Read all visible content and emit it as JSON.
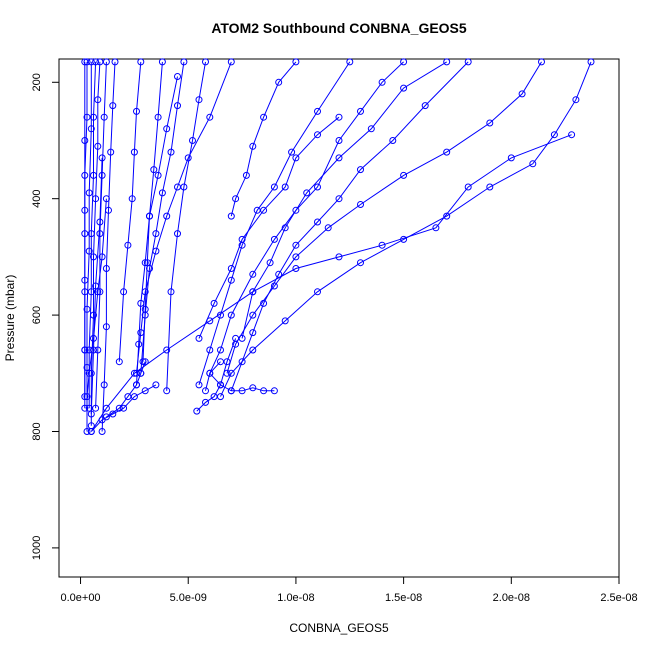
{
  "chart_data": {
    "type": "line",
    "title": "ATOM2 Southbound CONBNA_GEOS5",
    "xlabel": "CONBNA_GEOS5",
    "ylabel": "Pressure (mbar)",
    "xlim": [
      -1e-09,
      2.5e-08
    ],
    "ylim": [
      1050,
      160
    ],
    "x_ticks": [
      0,
      5e-09,
      1e-08,
      1.5e-08,
      2e-08,
      2.5e-08
    ],
    "x_tick_labels": [
      "0.0e+00",
      "5.0e-09",
      "1.0e-08",
      "1.5e-08",
      "2.0e-08",
      "2.5e-08"
    ],
    "y_ticks": [
      200,
      400,
      600,
      800,
      1000
    ],
    "y_tick_labels": [
      "200",
      "400",
      "600",
      "800",
      "1000"
    ],
    "grid": false,
    "series_color": "#0000ff",
    "series": [
      {
        "x": [
          1.5e-08,
          1.4e-08,
          1.3e-08,
          1.2e-08,
          1.1e-08,
          1e-08,
          9e-09,
          8e-09,
          7e-09,
          6.5e-09,
          6e-09,
          5.8e-09
        ],
        "y": [
          165,
          200,
          250,
          300,
          380,
          420,
          470,
          530,
          600,
          660,
          700,
          730
        ]
      },
      {
        "x": [
          2.37e-08,
          2.3e-08,
          2.2e-08,
          2.1e-08,
          1.9e-08,
          1.7e-08,
          1.5e-08,
          1.3e-08,
          1.1e-08,
          9.5e-09,
          8e-09,
          7e-09,
          6.5e-09
        ],
        "y": [
          165,
          230,
          290,
          340,
          380,
          430,
          470,
          510,
          560,
          610,
          660,
          700,
          740
        ]
      },
      {
        "x": [
          2.14e-08,
          2.05e-08,
          1.9e-08,
          1.7e-08,
          1.5e-08,
          1.3e-08,
          1.15e-08,
          1e-08,
          9e-09,
          8e-09,
          7.2e-09,
          6.8e-09
        ],
        "y": [
          165,
          220,
          270,
          320,
          360,
          410,
          450,
          500,
          550,
          600,
          650,
          700
        ]
      },
      {
        "x": [
          1.8e-08,
          1.6e-08,
          1.45e-08,
          1.3e-08,
          1.2e-08,
          1.1e-08,
          1e-08,
          9.2e-09,
          8.5e-09,
          8e-09,
          7.5e-09,
          7e-09
        ],
        "y": [
          165,
          240,
          300,
          350,
          400,
          440,
          480,
          530,
          580,
          630,
          680,
          730
        ]
      },
      {
        "x": [
          2.28e-08,
          2e-08,
          1.8e-08,
          1.65e-08,
          1.4e-08,
          1.2e-08,
          1e-08,
          8e-09,
          6e-09,
          4e-09,
          2.5e-09,
          1.2e-09,
          5e-10
        ],
        "y": [
          290,
          330,
          380,
          450,
          480,
          500,
          520,
          560,
          610,
          660,
          700,
          760,
          800
        ]
      },
      {
        "x": [
          1.25e-08,
          1.1e-08,
          9.8e-09,
          9e-09,
          8.2e-09,
          7.5e-09,
          7e-09,
          6.5e-09,
          6e-09,
          5.5e-09
        ],
        "y": [
          165,
          250,
          320,
          380,
          420,
          480,
          540,
          600,
          660,
          720
        ]
      },
      {
        "x": [
          1.7e-08,
          1.5e-08,
          1.35e-08,
          1.2e-08,
          1.05e-08,
          9.5e-09,
          8.8e-09,
          8e-09,
          7.5e-09
        ],
        "y": [
          165,
          210,
          280,
          330,
          390,
          450,
          510,
          560,
          640
        ]
      },
      {
        "x": [
          1.2e-08,
          1.1e-08,
          1e-08,
          9.5e-09,
          8.5e-09,
          7.5e-09,
          7e-09,
          6.2e-09,
          5.5e-09
        ],
        "y": [
          260,
          290,
          330,
          380,
          420,
          470,
          520,
          580,
          640
        ]
      },
      {
        "x": [
          1e-08,
          9.2e-09,
          8.5e-09,
          8e-09,
          7.7e-09,
          7.2e-09,
          7e-09
        ],
        "y": [
          165,
          200,
          260,
          310,
          360,
          400,
          430
        ]
      },
      {
        "x": [
          7e-09,
          6e-09,
          5e-09,
          4.5e-09,
          4e-09,
          3.5e-09,
          3e-09,
          2.8e-09,
          2.6e-09
        ],
        "y": [
          165,
          260,
          330,
          380,
          430,
          490,
          560,
          630,
          700
        ]
      },
      {
        "x": [
          4.8e-09,
          4.5e-09,
          4.2e-09,
          3.8e-09,
          3.5e-09,
          3.2e-09,
          3e-09,
          2.8e-09
        ],
        "y": [
          165,
          240,
          320,
          390,
          460,
          520,
          600,
          700
        ]
      },
      {
        "x": [
          4.5e-09,
          4e-09,
          3.6e-09,
          3.2e-09,
          3e-09,
          2.8e-09,
          2.7e-09,
          2.6e-09
        ],
        "y": [
          190,
          280,
          360,
          430,
          510,
          580,
          650,
          720
        ]
      },
      {
        "x": [
          3.8e-09,
          3.6e-09,
          3.4e-09,
          3.2e-09,
          3.1e-09,
          3e-09,
          2.9e-09
        ],
        "y": [
          165,
          260,
          350,
          430,
          510,
          590,
          680
        ]
      },
      {
        "x": [
          5.8e-09,
          5.5e-09,
          5.2e-09,
          4.8e-09,
          4.5e-09,
          4.2e-09,
          4e-09
        ],
        "y": [
          165,
          230,
          300,
          380,
          460,
          560,
          730
        ]
      },
      {
        "x": [
          2.8e-09,
          2.6e-09,
          2.5e-09,
          2.4e-09,
          2.2e-09,
          2e-09,
          1.8e-09
        ],
        "y": [
          165,
          250,
          320,
          400,
          480,
          560,
          680
        ]
      },
      {
        "x": [
          1.6e-09,
          1.5e-09,
          1.4e-09,
          1.3e-09,
          1.2e-09,
          1.2e-09,
          1.1e-09,
          1e-09
        ],
        "y": [
          165,
          240,
          320,
          420,
          520,
          620,
          720,
          800
        ]
      },
      {
        "x": [
          1.2e-09,
          1.1e-09,
          1e-09,
          9e-10,
          9e-10,
          8e-10,
          7e-10
        ],
        "y": [
          165,
          260,
          360,
          460,
          560,
          660,
          760
        ]
      },
      {
        "x": [
          9e-10,
          8e-10,
          8e-10,
          7e-10,
          6e-10,
          6e-10,
          5e-10,
          5e-10
        ],
        "y": [
          165,
          230,
          310,
          400,
          500,
          600,
          700,
          790
        ]
      },
      {
        "x": [
          7e-10,
          6e-10,
          6e-10,
          5e-10,
          5e-10,
          4e-10,
          4e-10
        ],
        "y": [
          165,
          260,
          360,
          460,
          560,
          660,
          760
        ]
      },
      {
        "x": [
          5e-10,
          5e-10,
          4e-10,
          4e-10,
          3e-10,
          3e-10,
          3e-10
        ],
        "y": [
          165,
          280,
          390,
          490,
          590,
          690,
          800
        ]
      },
      {
        "x": [
          3e-10,
          3e-10,
          2e-10,
          2e-10,
          2e-10,
          2e-10,
          2e-10
        ],
        "y": [
          165,
          260,
          360,
          460,
          560,
          660,
          740
        ]
      },
      {
        "x": [
          2e-10,
          2e-10,
          2e-10,
          2e-10,
          2e-10,
          2e-10
        ],
        "y": [
          165,
          300,
          420,
          540,
          660,
          760
        ]
      },
      {
        "x": [
          1.2e-09,
          1e-09,
          8e-10,
          6e-10,
          4e-10,
          3e-10
        ],
        "y": [
          400,
          500,
          560,
          640,
          700,
          740
        ]
      },
      {
        "x": [
          1e-09,
          9e-10,
          7e-10,
          6e-10,
          5e-10
        ],
        "y": [
          330,
          440,
          550,
          660,
          770
        ]
      },
      {
        "x": [
          6.5e-09,
          6e-09,
          6.5e-09,
          7e-09,
          7.5e-09,
          8e-09,
          8.5e-09,
          9e-09
        ],
        "y": [
          680,
          700,
          720,
          730,
          730,
          725,
          730,
          730
        ]
      },
      {
        "x": [
          7.2e-09,
          6.8e-09,
          6.5e-09,
          6.2e-09,
          5.8e-09,
          5.4e-09
        ],
        "y": [
          640,
          680,
          720,
          740,
          750,
          765
        ]
      },
      {
        "x": [
          3e-09,
          2.8e-09,
          2.6e-09,
          2.2e-09,
          1.8e-09,
          1.2e-09
        ],
        "y": [
          680,
          700,
          720,
          740,
          760,
          775
        ]
      },
      {
        "x": [
          3.5e-09,
          3e-09,
          2.5e-09,
          2e-09,
          1.5e-09,
          1e-09,
          5e-10
        ],
        "y": [
          720,
          730,
          740,
          760,
          770,
          780,
          800
        ]
      }
    ]
  }
}
